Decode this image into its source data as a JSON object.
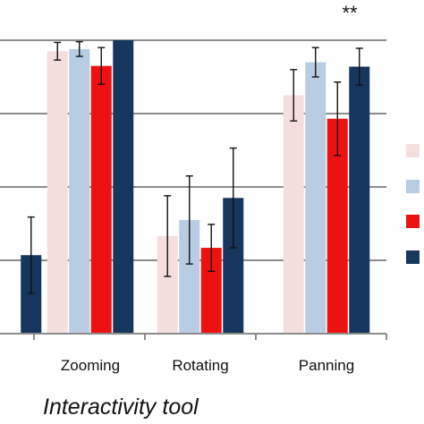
{
  "chart_data": {
    "type": "bar",
    "xlabel": "Interactivity tool",
    "ylabel": "",
    "title": "",
    "ylim": [
      0,
      4
    ],
    "grid": true,
    "legend_position": "right",
    "categories": [
      "",
      "Zooming",
      "Rotating",
      "Panning"
    ],
    "series": [
      {
        "color": "#f5dede",
        "values": [
          null,
          3.85,
          1.33,
          3.25
        ],
        "errors": [
          null,
          0.12,
          0.55,
          0.35
        ]
      },
      {
        "color": "#b8cce4",
        "values": [
          null,
          3.88,
          1.55,
          3.7
        ],
        "errors": [
          null,
          0.1,
          0.6,
          0.2
        ]
      },
      {
        "color": "#ee1111",
        "values": [
          null,
          3.65,
          1.17,
          2.93
        ],
        "errors": [
          null,
          0.25,
          0.32,
          0.5
        ]
      },
      {
        "color": "#17365d",
        "values": [
          1.07,
          4.0,
          1.85,
          3.64
        ],
        "errors": [
          0.52,
          0.0,
          0.68,
          0.25
        ]
      }
    ],
    "annotations": [
      {
        "text": "**",
        "category": "Panning"
      }
    ]
  }
}
